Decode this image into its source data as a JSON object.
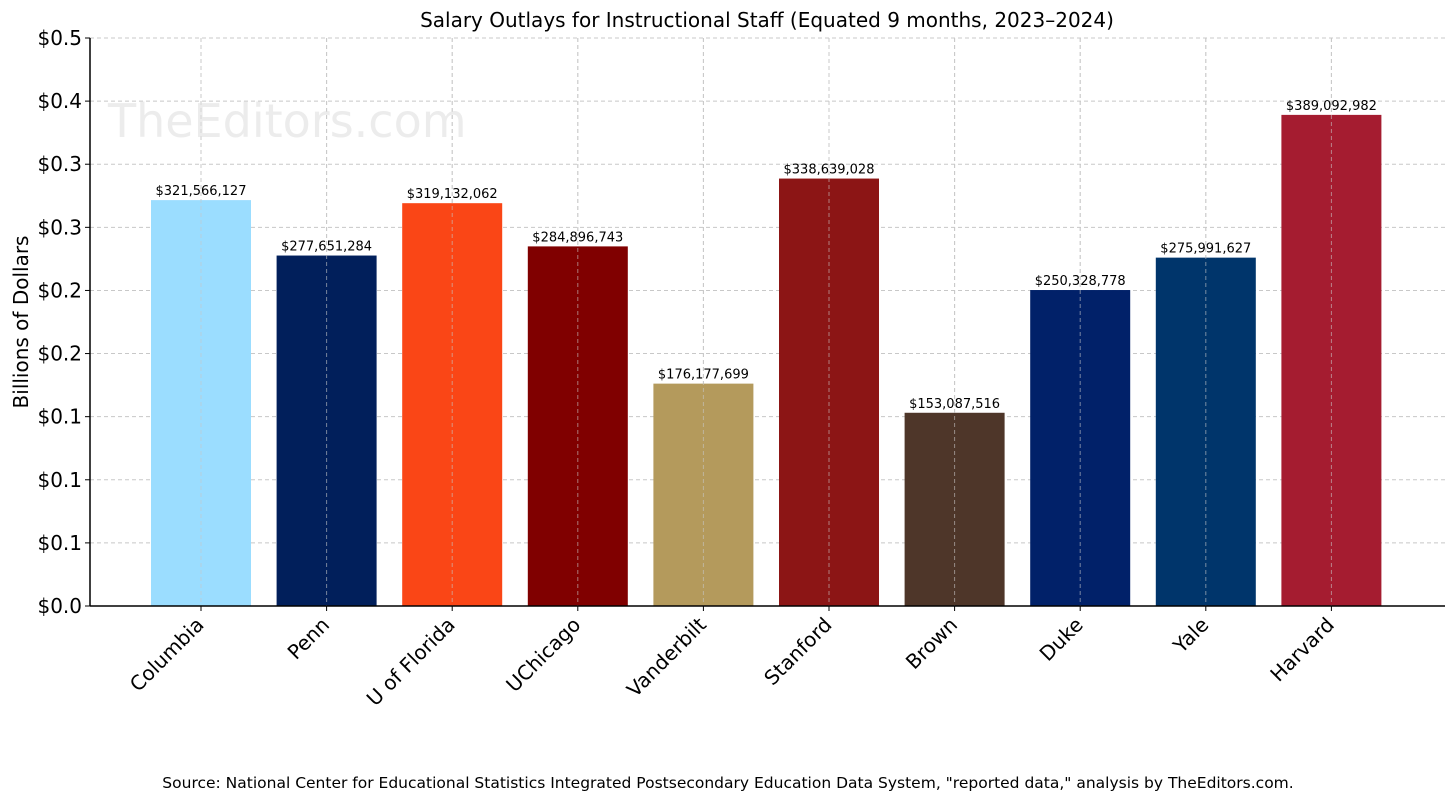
{
  "chart_data": {
    "type": "bar",
    "title": "Salary Outlays for Instructional Staff (Equated 9 months, 2023–2024)",
    "xlabel": "",
    "ylabel": "Billions of Dollars",
    "ylim": [
      0,
      0.45
    ],
    "yticks": [
      0,
      0.05,
      0.1,
      0.15,
      0.2,
      0.25,
      0.3,
      0.35,
      0.4,
      0.45
    ],
    "ytick_labels": [
      "$0.0",
      "$0.1",
      "$0.1",
      "$0.1",
      "$0.2",
      "$0.2",
      "$0.3",
      "$0.3",
      "$0.4",
      "$0.5"
    ],
    "grid": true,
    "categories": [
      "Columbia",
      "Penn",
      "U of Florida",
      "UChicago",
      "Vanderbilt",
      "Stanford",
      "Brown",
      "Duke",
      "Yale",
      "Harvard"
    ],
    "values": [
      321566127,
      277651284,
      319132062,
      284896743,
      176177699,
      338639028,
      153087516,
      250328778,
      275991627,
      389092982
    ],
    "data_labels": [
      "$321,566,127",
      "$277,651,284",
      "$319,132,062",
      "$284,896,743",
      "$176,177,699",
      "$338,639,028",
      "$153,087,516",
      "$250,328,778",
      "$275,991,627",
      "$389,092,982"
    ],
    "colors": [
      "#9BDDFF",
      "#011F5B",
      "#FA4616",
      "#800000",
      "#B49A5C",
      "#8C1515",
      "#4E3629",
      "#012169",
      "#00356B",
      "#A51C30"
    ],
    "watermark": "TheEditors.com",
    "source": "Source: National Center for Educational Statistics Integrated Postsecondary Education Data System, \"reported data,\" analysis by TheEditors.com."
  }
}
